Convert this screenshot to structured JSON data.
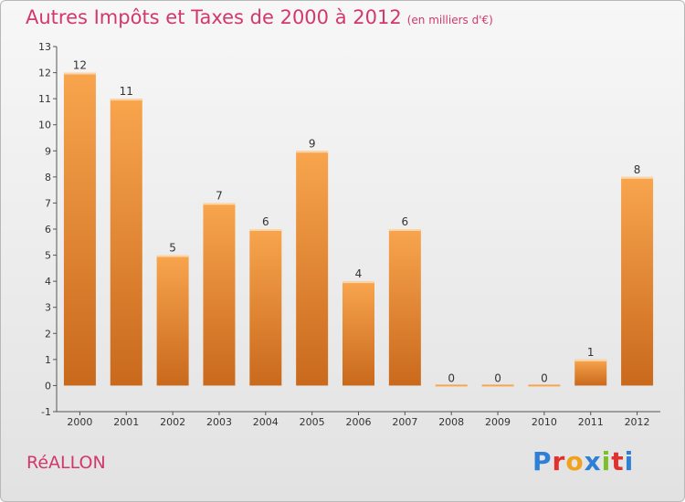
{
  "header": {
    "title": "Autres Impôts et Taxes de 2000 à 2012",
    "unit": "(en milliers d'€)"
  },
  "footer": {
    "place": "RéALLON",
    "brand": "Proxiti"
  },
  "colors": {
    "title": "#d2386c",
    "bar_light": "#f8a54e",
    "bar_dark": "#c9691c"
  },
  "chart_data": {
    "type": "bar",
    "title": "Autres Impôts et Taxes de 2000 à 2012",
    "unit": "(en milliers d'€)",
    "categories": [
      "2000",
      "2001",
      "2002",
      "2003",
      "2004",
      "2005",
      "2006",
      "2007",
      "2008",
      "2009",
      "2010",
      "2011",
      "2012"
    ],
    "values": [
      12,
      11,
      5,
      7,
      6,
      9,
      4,
      6,
      0,
      0,
      0,
      1,
      8
    ],
    "ylim": [
      -1,
      13
    ],
    "yticks": [
      -1,
      0,
      1,
      2,
      3,
      4,
      5,
      6,
      7,
      8,
      9,
      10,
      11,
      12,
      13
    ],
    "grid": false,
    "data_labels": true
  }
}
